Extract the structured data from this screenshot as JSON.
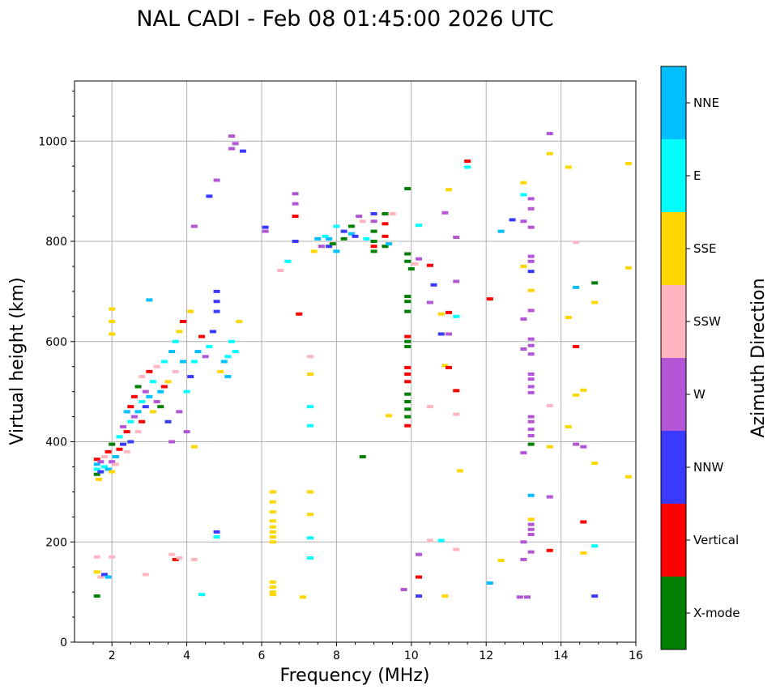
{
  "chart_data": {
    "type": "scatter",
    "title": "NAL CADI - Feb 08 01:45:00 2026 UTC",
    "xlabel": "Frequency (MHz)",
    "ylabel": "Virtual height (km)",
    "xlim": [
      1,
      16
    ],
    "ylim": [
      0,
      1120
    ],
    "xticks": [
      2,
      4,
      6,
      8,
      10,
      12,
      14,
      16
    ],
    "yticks": [
      0,
      200,
      400,
      600,
      800,
      1000
    ],
    "grid": true,
    "colorbar": {
      "title": "Azimuth Direction",
      "categories": [
        {
          "label": "X-mode",
          "color": "#008000"
        },
        {
          "label": "Vertical",
          "color": "#ff0000"
        },
        {
          "label": "NNW",
          "color": "#3a3aff"
        },
        {
          "label": "W",
          "color": "#b256d6"
        },
        {
          "label": "SSW",
          "color": "#ffb6c1"
        },
        {
          "label": "SSE",
          "color": "#ffd700"
        },
        {
          "label": "E",
          "color": "#00ffff"
        },
        {
          "label": "NNE",
          "color": "#00bfff"
        }
      ]
    },
    "points": [
      [
        1.6,
        355,
        "NNE"
      ],
      [
        1.6,
        345,
        "E"
      ],
      [
        1.6,
        335,
        "X-mode"
      ],
      [
        1.6,
        365,
        "Vertical"
      ],
      [
        1.7,
        340,
        "NNW"
      ],
      [
        1.7,
        360,
        "W"
      ],
      [
        1.65,
        325,
        "SSE"
      ],
      [
        1.8,
        350,
        "E"
      ],
      [
        1.8,
        370,
        "SSW"
      ],
      [
        1.9,
        345,
        "NNE"
      ],
      [
        1.9,
        380,
        "Vertical"
      ],
      [
        2.0,
        360,
        "W"
      ],
      [
        2.0,
        340,
        "SSE"
      ],
      [
        2.0,
        395,
        "X-mode"
      ],
      [
        2.1,
        370,
        "NNE"
      ],
      [
        2.1,
        355,
        "SSW"
      ],
      [
        2.2,
        385,
        "Vertical"
      ],
      [
        2.2,
        410,
        "E"
      ],
      [
        2.3,
        395,
        "NNW"
      ],
      [
        2.3,
        430,
        "W"
      ],
      [
        2.4,
        420,
        "Vertical"
      ],
      [
        2.4,
        380,
        "SSW"
      ],
      [
        2.4,
        460,
        "NNE"
      ],
      [
        2.5,
        440,
        "E"
      ],
      [
        2.5,
        470,
        "Vertical"
      ],
      [
        2.5,
        400,
        "NNW"
      ],
      [
        2.6,
        450,
        "W"
      ],
      [
        2.6,
        490,
        "Vertical"
      ],
      [
        2.7,
        460,
        "NNE"
      ],
      [
        2.7,
        420,
        "SSW"
      ],
      [
        2.7,
        510,
        "X-mode"
      ],
      [
        2.8,
        480,
        "E"
      ],
      [
        2.8,
        440,
        "Vertical"
      ],
      [
        2.8,
        530,
        "SSW"
      ],
      [
        2.9,
        470,
        "NNW"
      ],
      [
        2.9,
        500,
        "W"
      ],
      [
        3.0,
        490,
        "NNE"
      ],
      [
        3.0,
        540,
        "Vertical"
      ],
      [
        3.1,
        460,
        "SSE"
      ],
      [
        3.1,
        520,
        "E"
      ],
      [
        3.2,
        480,
        "W"
      ],
      [
        3.2,
        550,
        "SSW"
      ],
      [
        3.3,
        500,
        "NNE"
      ],
      [
        3.3,
        470,
        "X-mode"
      ],
      [
        3.4,
        510,
        "Vertical"
      ],
      [
        3.4,
        560,
        "E"
      ],
      [
        3.5,
        440,
        "NNW"
      ],
      [
        3.5,
        520,
        "SSE"
      ],
      [
        3.6,
        400,
        "W"
      ],
      [
        3.6,
        580,
        "NNE"
      ],
      [
        3.7,
        540,
        "SSW"
      ],
      [
        3.7,
        600,
        "E"
      ],
      [
        3.8,
        460,
        "W"
      ],
      [
        3.8,
        620,
        "SSE"
      ],
      [
        3.9,
        560,
        "NNE"
      ],
      [
        3.9,
        640,
        "Vertical"
      ],
      [
        4.0,
        500,
        "E"
      ],
      [
        4.0,
        420,
        "W"
      ],
      [
        4.1,
        660,
        "SSE"
      ],
      [
        4.1,
        530,
        "NNW"
      ],
      [
        4.2,
        390,
        "SSE"
      ],
      [
        4.2,
        560,
        "E"
      ],
      [
        4.3,
        580,
        "NNE"
      ],
      [
        4.4,
        610,
        "Vertical"
      ],
      [
        4.5,
        570,
        "W"
      ],
      [
        4.6,
        590,
        "E"
      ],
      [
        4.7,
        620,
        "NNW"
      ],
      [
        4.8,
        700,
        "NNW"
      ],
      [
        4.8,
        680,
        "NNW"
      ],
      [
        4.8,
        660,
        "NNW"
      ],
      [
        4.9,
        540,
        "SSE"
      ],
      [
        5.0,
        560,
        "NNE"
      ],
      [
        5.1,
        570,
        "E"
      ],
      [
        5.1,
        530,
        "NNE"
      ],
      [
        5.2,
        600,
        "E"
      ],
      [
        5.3,
        580,
        "E"
      ],
      [
        5.4,
        640,
        "SSE"
      ],
      [
        2.0,
        665,
        "SSE"
      ],
      [
        2.0,
        640,
        "SSE"
      ],
      [
        2.0,
        615,
        "SSE"
      ],
      [
        3.0,
        683,
        "NNE"
      ],
      [
        1.6,
        170,
        "SSW"
      ],
      [
        1.6,
        140,
        "SSE"
      ],
      [
        1.7,
        130,
        "SSW"
      ],
      [
        1.8,
        135,
        "NNW"
      ],
      [
        1.9,
        130,
        "NNE"
      ],
      [
        2.0,
        170,
        "SSW"
      ],
      [
        1.6,
        92,
        "X-mode"
      ],
      [
        2.9,
        135,
        "SSW"
      ],
      [
        3.6,
        175,
        "SSW"
      ],
      [
        3.7,
        165,
        "Vertical"
      ],
      [
        3.8,
        168,
        "SSW"
      ],
      [
        4.2,
        165,
        "SSW"
      ],
      [
        4.4,
        95,
        "E"
      ],
      [
        4.8,
        220,
        "NNW"
      ],
      [
        4.8,
        210,
        "E"
      ],
      [
        4.6,
        890,
        "NNW"
      ],
      [
        4.8,
        922,
        "W"
      ],
      [
        4.2,
        830,
        "W"
      ],
      [
        5.2,
        1010,
        "W"
      ],
      [
        5.2,
        985,
        "W"
      ],
      [
        5.3,
        995,
        "W"
      ],
      [
        5.5,
        980,
        "NNW"
      ],
      [
        6.1,
        828,
        "NNW"
      ],
      [
        6.1,
        820,
        "W"
      ],
      [
        6.3,
        242,
        "SSE"
      ],
      [
        6.3,
        230,
        "SSE"
      ],
      [
        6.3,
        220,
        "SSE"
      ],
      [
        6.3,
        210,
        "SSE"
      ],
      [
        6.3,
        200,
        "SSE"
      ],
      [
        6.3,
        120,
        "SSE"
      ],
      [
        6.3,
        110,
        "SSE"
      ],
      [
        6.3,
        100,
        "SSE"
      ],
      [
        6.3,
        95,
        "SSE"
      ],
      [
        6.3,
        280,
        "SSE"
      ],
      [
        6.3,
        260,
        "SSE"
      ],
      [
        6.3,
        300,
        "SSE"
      ],
      [
        6.5,
        742,
        "SSW"
      ],
      [
        6.7,
        760,
        "E"
      ],
      [
        6.9,
        895,
        "W"
      ],
      [
        6.9,
        875,
        "W"
      ],
      [
        6.9,
        850,
        "Vertical"
      ],
      [
        6.9,
        800,
        "NNW"
      ],
      [
        7.0,
        655,
        "Vertical"
      ],
      [
        7.1,
        90,
        "SSE"
      ],
      [
        7.3,
        570,
        "SSW"
      ],
      [
        7.3,
        535,
        "SSE"
      ],
      [
        7.3,
        470,
        "E"
      ],
      [
        7.3,
        432,
        "E"
      ],
      [
        7.3,
        300,
        "SSE"
      ],
      [
        7.3,
        255,
        "SSE"
      ],
      [
        7.3,
        208,
        "E"
      ],
      [
        7.3,
        168,
        "E"
      ],
      [
        7.4,
        780,
        "SSE"
      ],
      [
        7.5,
        805,
        "NNE"
      ],
      [
        7.6,
        790,
        "W"
      ],
      [
        7.7,
        810,
        "E"
      ],
      [
        7.8,
        790,
        "NNW"
      ],
      [
        7.8,
        805,
        "NNE"
      ],
      [
        7.9,
        795,
        "X-mode"
      ],
      [
        8.0,
        780,
        "NNE"
      ],
      [
        8.0,
        830,
        "E"
      ],
      [
        8.2,
        820,
        "NNW"
      ],
      [
        8.2,
        805,
        "X-mode"
      ],
      [
        8.4,
        815,
        "NNE"
      ],
      [
        8.4,
        830,
        "X-mode"
      ],
      [
        8.5,
        810,
        "NNW"
      ],
      [
        8.6,
        850,
        "W"
      ],
      [
        8.7,
        840,
        "SSW"
      ],
      [
        8.8,
        805,
        "E"
      ],
      [
        9.0,
        820,
        "X-mode"
      ],
      [
        9.0,
        800,
        "X-mode"
      ],
      [
        9.0,
        780,
        "X-mode"
      ],
      [
        9.0,
        790,
        "Vertical"
      ],
      [
        9.0,
        840,
        "W"
      ],
      [
        9.0,
        855,
        "NNW"
      ],
      [
        9.3,
        855,
        "X-mode"
      ],
      [
        9.3,
        835,
        "Vertical"
      ],
      [
        9.3,
        810,
        "Vertical"
      ],
      [
        9.3,
        790,
        "X-mode"
      ],
      [
        9.4,
        795,
        "NNE"
      ],
      [
        9.5,
        855,
        "SSW"
      ],
      [
        8.7,
        370,
        "X-mode"
      ],
      [
        9.4,
        452,
        "SSE"
      ],
      [
        9.9,
        905,
        "X-mode"
      ],
      [
        9.9,
        775,
        "X-mode"
      ],
      [
        9.9,
        760,
        "X-mode"
      ],
      [
        10.0,
        745,
        "X-mode"
      ],
      [
        9.9,
        690,
        "X-mode"
      ],
      [
        9.9,
        680,
        "X-mode"
      ],
      [
        9.9,
        660,
        "X-mode"
      ],
      [
        9.9,
        610,
        "Vertical"
      ],
      [
        9.9,
        600,
        "X-mode"
      ],
      [
        9.9,
        590,
        "X-mode"
      ],
      [
        9.9,
        548,
        "Vertical"
      ],
      [
        9.9,
        535,
        "Vertical"
      ],
      [
        9.9,
        520,
        "Vertical"
      ],
      [
        9.9,
        495,
        "X-mode"
      ],
      [
        9.9,
        480,
        "X-mode"
      ],
      [
        9.9,
        465,
        "X-mode"
      ],
      [
        9.9,
        450,
        "X-mode"
      ],
      [
        9.9,
        432,
        "Vertical"
      ],
      [
        9.8,
        105,
        "W"
      ],
      [
        10.2,
        832,
        "E"
      ],
      [
        10.2,
        765,
        "W"
      ],
      [
        10.1,
        755,
        "SSW"
      ],
      [
        10.5,
        752,
        "Vertical"
      ],
      [
        10.6,
        713,
        "NNW"
      ],
      [
        10.5,
        678,
        "W"
      ],
      [
        10.8,
        655,
        "SSE"
      ],
      [
        11.0,
        658,
        "Vertical"
      ],
      [
        11.2,
        650,
        "E"
      ],
      [
        10.8,
        615,
        "NNW"
      ],
      [
        11.0,
        615,
        "W"
      ],
      [
        10.9,
        552,
        "SSE"
      ],
      [
        11.0,
        548,
        "Vertical"
      ],
      [
        11.2,
        502,
        "Vertical"
      ],
      [
        10.5,
        470,
        "SSW"
      ],
      [
        11.2,
        455,
        "SSW"
      ],
      [
        11.3,
        342,
        "SSE"
      ],
      [
        10.2,
        175,
        "W"
      ],
      [
        10.2,
        130,
        "Vertical"
      ],
      [
        10.2,
        92,
        "NNW"
      ],
      [
        10.5,
        203,
        "SSW"
      ],
      [
        10.8,
        203,
        "E"
      ],
      [
        10.9,
        92,
        "SSE"
      ],
      [
        11.2,
        185,
        "SSW"
      ],
      [
        11.5,
        960,
        "Vertical"
      ],
      [
        11.5,
        948,
        "E"
      ],
      [
        11.0,
        903,
        "SSE"
      ],
      [
        10.9,
        857,
        "W"
      ],
      [
        11.2,
        808,
        "W"
      ],
      [
        11.2,
        720,
        "W"
      ],
      [
        12.1,
        685,
        "Vertical"
      ],
      [
        12.1,
        118,
        "NNE"
      ],
      [
        12.4,
        163,
        "SSE"
      ],
      [
        12.4,
        820,
        "NNE"
      ],
      [
        12.7,
        843,
        "NNW"
      ],
      [
        13.0,
        917,
        "SSE"
      ],
      [
        13.0,
        893,
        "E"
      ],
      [
        13.0,
        840,
        "W"
      ],
      [
        13.0,
        750,
        "SSE"
      ],
      [
        13.0,
        645,
        "W"
      ],
      [
        13.0,
        585,
        "W"
      ],
      [
        13.0,
        378,
        "W"
      ],
      [
        13.0,
        200,
        "W"
      ],
      [
        13.0,
        165,
        "W"
      ],
      [
        12.9,
        90,
        "W"
      ],
      [
        13.1,
        90,
        "W"
      ],
      [
        13.2,
        885,
        "W"
      ],
      [
        13.2,
        865,
        "W"
      ],
      [
        13.2,
        828,
        "W"
      ],
      [
        13.2,
        770,
        "W"
      ],
      [
        13.2,
        760,
        "W"
      ],
      [
        13.2,
        740,
        "NNW"
      ],
      [
        13.2,
        702,
        "SSE"
      ],
      [
        13.2,
        662,
        "W"
      ],
      [
        13.2,
        605,
        "W"
      ],
      [
        13.2,
        592,
        "W"
      ],
      [
        13.2,
        575,
        "W"
      ],
      [
        13.2,
        535,
        "W"
      ],
      [
        13.2,
        525,
        "W"
      ],
      [
        13.2,
        510,
        "W"
      ],
      [
        13.2,
        498,
        "W"
      ],
      [
        13.2,
        450,
        "W"
      ],
      [
        13.2,
        440,
        "W"
      ],
      [
        13.2,
        425,
        "W"
      ],
      [
        13.2,
        412,
        "W"
      ],
      [
        13.2,
        395,
        "X-mode"
      ],
      [
        13.2,
        293,
        "NNE"
      ],
      [
        13.2,
        245,
        "SSE"
      ],
      [
        13.2,
        235,
        "W"
      ],
      [
        13.2,
        225,
        "W"
      ],
      [
        13.2,
        215,
        "W"
      ],
      [
        13.2,
        180,
        "W"
      ],
      [
        13.7,
        1015,
        "W"
      ],
      [
        13.7,
        975,
        "SSE"
      ],
      [
        13.7,
        472,
        "SSW"
      ],
      [
        13.7,
        390,
        "SSE"
      ],
      [
        13.7,
        290,
        "W"
      ],
      [
        13.7,
        183,
        "Vertical"
      ],
      [
        14.2,
        948,
        "SSE"
      ],
      [
        14.2,
        648,
        "SSE"
      ],
      [
        14.2,
        430,
        "SSE"
      ],
      [
        14.4,
        798,
        "SSW"
      ],
      [
        14.4,
        708,
        "NNE"
      ],
      [
        14.4,
        590,
        "Vertical"
      ],
      [
        14.4,
        493,
        "SSE"
      ],
      [
        14.4,
        395,
        "W"
      ],
      [
        14.6,
        503,
        "SSE"
      ],
      [
        14.6,
        390,
        "W"
      ],
      [
        14.6,
        240,
        "Vertical"
      ],
      [
        14.6,
        178,
        "SSE"
      ],
      [
        14.9,
        717,
        "X-mode"
      ],
      [
        14.9,
        678,
        "SSE"
      ],
      [
        14.9,
        357,
        "SSE"
      ],
      [
        14.9,
        192,
        "E"
      ],
      [
        14.9,
        92,
        "NNW"
      ],
      [
        15.8,
        955,
        "SSE"
      ],
      [
        15.8,
        747,
        "SSE"
      ],
      [
        15.8,
        330,
        "SSE"
      ]
    ]
  }
}
